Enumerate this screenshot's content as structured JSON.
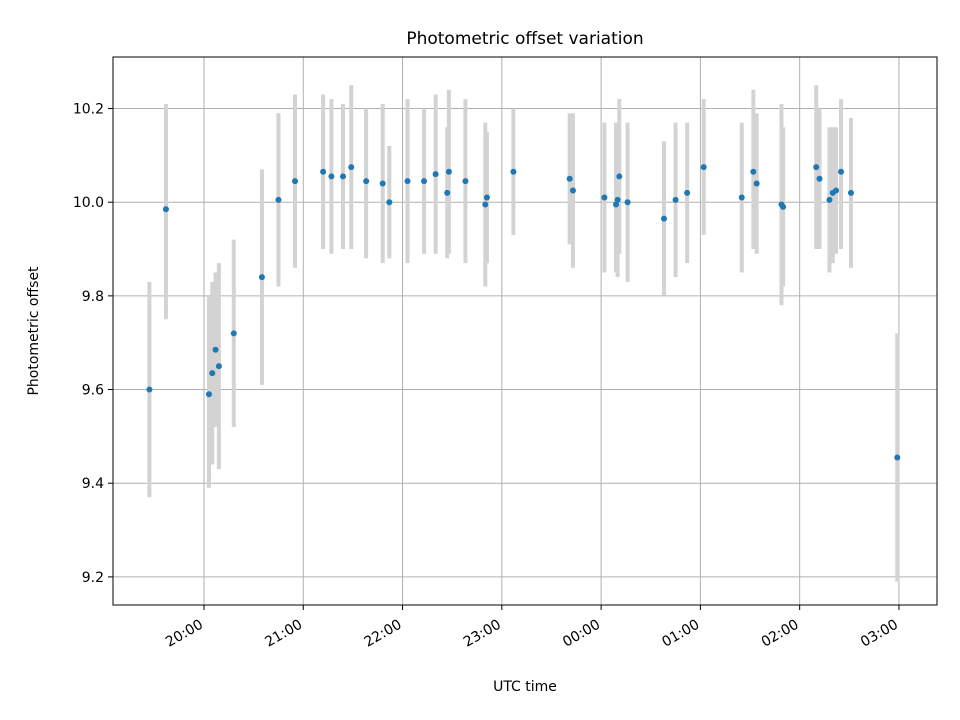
{
  "chart_data": {
    "type": "scatter",
    "title": "Photometric offset variation",
    "xlabel": "UTC time",
    "ylabel": "Photometric offset",
    "x_axis_kind": "time",
    "xlim": [
      "19:05",
      "03:23"
    ],
    "ylim": [
      9.14,
      10.31
    ],
    "x_ticks": [
      "20:00",
      "21:00",
      "22:00",
      "23:00",
      "00:00",
      "01:00",
      "02:00",
      "03:00"
    ],
    "y_ticks": [
      "9.2",
      "9.4",
      "9.6",
      "9.8",
      "10.0",
      "10.2"
    ],
    "grid": true,
    "colors": {
      "marker": "#1f77b4",
      "errorbar": "#d3d3d3",
      "grid": "#b0b0b0"
    },
    "points": [
      {
        "t": "19:27",
        "y": 9.6,
        "lo": 9.37,
        "hi": 9.83
      },
      {
        "t": "19:37",
        "y": 9.985,
        "lo": 9.75,
        "hi": 10.21
      },
      {
        "t": "20:03",
        "y": 9.59,
        "lo": 9.39,
        "hi": 9.8
      },
      {
        "t": "20:05",
        "y": 9.635,
        "lo": 9.44,
        "hi": 9.83
      },
      {
        "t": "20:07",
        "y": 9.685,
        "lo": 9.52,
        "hi": 9.85
      },
      {
        "t": "20:09",
        "y": 9.65,
        "lo": 9.43,
        "hi": 9.87
      },
      {
        "t": "20:18",
        "y": 9.72,
        "lo": 9.52,
        "hi": 9.92
      },
      {
        "t": "20:35",
        "y": 9.84,
        "lo": 9.61,
        "hi": 10.07
      },
      {
        "t": "20:45",
        "y": 10.005,
        "lo": 9.82,
        "hi": 10.19
      },
      {
        "t": "20:55",
        "y": 10.045,
        "lo": 9.86,
        "hi": 10.23
      },
      {
        "t": "21:12",
        "y": 10.065,
        "lo": 9.9,
        "hi": 10.23
      },
      {
        "t": "21:17",
        "y": 10.055,
        "lo": 9.89,
        "hi": 10.22
      },
      {
        "t": "21:24",
        "y": 10.055,
        "lo": 9.9,
        "hi": 10.21
      },
      {
        "t": "21:29",
        "y": 10.075,
        "lo": 9.9,
        "hi": 10.25
      },
      {
        "t": "21:38",
        "y": 10.045,
        "lo": 9.88,
        "hi": 10.2
      },
      {
        "t": "21:48",
        "y": 10.04,
        "lo": 9.87,
        "hi": 10.21
      },
      {
        "t": "21:52",
        "y": 10.0,
        "lo": 9.88,
        "hi": 10.12
      },
      {
        "t": "22:03",
        "y": 10.045,
        "lo": 9.87,
        "hi": 10.22
      },
      {
        "t": "22:13",
        "y": 10.045,
        "lo": 9.89,
        "hi": 10.2
      },
      {
        "t": "22:20",
        "y": 10.06,
        "lo": 9.89,
        "hi": 10.23
      },
      {
        "t": "22:27",
        "y": 10.02,
        "lo": 9.88,
        "hi": 10.16
      },
      {
        "t": "22:28",
        "y": 10.065,
        "lo": 9.89,
        "hi": 10.24
      },
      {
        "t": "22:38",
        "y": 10.045,
        "lo": 9.87,
        "hi": 10.22
      },
      {
        "t": "22:50",
        "y": 9.995,
        "lo": 9.82,
        "hi": 10.17
      },
      {
        "t": "22:51",
        "y": 10.01,
        "lo": 9.87,
        "hi": 10.15
      },
      {
        "t": "23:07",
        "y": 10.065,
        "lo": 9.93,
        "hi": 10.2
      },
      {
        "t": "23:41",
        "y": 10.05,
        "lo": 9.91,
        "hi": 10.19
      },
      {
        "t": "23:43",
        "y": 10.025,
        "lo": 9.86,
        "hi": 10.19
      },
      {
        "t": "00:02",
        "y": 10.01,
        "lo": 9.85,
        "hi": 10.17
      },
      {
        "t": "00:09",
        "y": 9.995,
        "lo": 9.85,
        "hi": 10.17
      },
      {
        "t": "00:10",
        "y": 10.005,
        "lo": 9.84,
        "hi": 10.17
      },
      {
        "t": "00:11",
        "y": 10.055,
        "lo": 9.89,
        "hi": 10.22
      },
      {
        "t": "00:16",
        "y": 10.0,
        "lo": 9.83,
        "hi": 10.17
      },
      {
        "t": "00:38",
        "y": 9.965,
        "lo": 9.8,
        "hi": 10.13
      },
      {
        "t": "00:45",
        "y": 10.005,
        "lo": 9.84,
        "hi": 10.17
      },
      {
        "t": "00:52",
        "y": 10.02,
        "lo": 9.87,
        "hi": 10.17
      },
      {
        "t": "01:02",
        "y": 10.075,
        "lo": 9.93,
        "hi": 10.22
      },
      {
        "t": "01:25",
        "y": 10.01,
        "lo": 9.85,
        "hi": 10.17
      },
      {
        "t": "01:32",
        "y": 10.065,
        "lo": 9.9,
        "hi": 10.24
      },
      {
        "t": "01:34",
        "y": 10.04,
        "lo": 9.89,
        "hi": 10.19
      },
      {
        "t": "01:49",
        "y": 9.995,
        "lo": 9.78,
        "hi": 10.21
      },
      {
        "t": "01:50",
        "y": 9.99,
        "lo": 9.82,
        "hi": 10.16
      },
      {
        "t": "02:10",
        "y": 10.075,
        "lo": 9.9,
        "hi": 10.25
      },
      {
        "t": "02:12",
        "y": 10.05,
        "lo": 9.9,
        "hi": 10.2
      },
      {
        "t": "02:18",
        "y": 10.005,
        "lo": 9.85,
        "hi": 10.16
      },
      {
        "t": "02:20",
        "y": 10.02,
        "lo": 9.87,
        "hi": 10.16
      },
      {
        "t": "02:22",
        "y": 10.025,
        "lo": 9.89,
        "hi": 10.16
      },
      {
        "t": "02:25",
        "y": 10.065,
        "lo": 9.9,
        "hi": 10.22
      },
      {
        "t": "02:31",
        "y": 10.02,
        "lo": 9.86,
        "hi": 10.18
      },
      {
        "t": "02:59",
        "y": 9.455,
        "lo": 9.19,
        "hi": 9.72
      }
    ]
  }
}
